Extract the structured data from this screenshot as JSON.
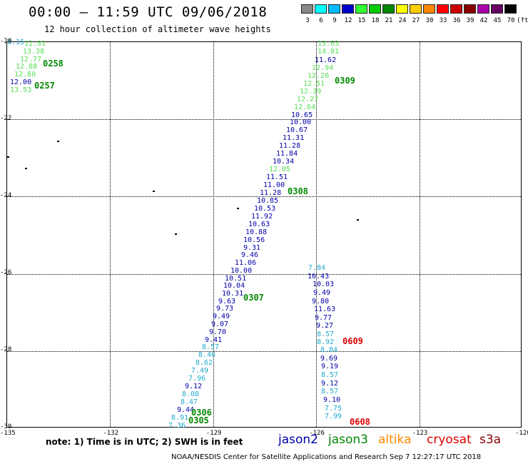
{
  "header": {
    "title": "00:00 – 11:59 UTC 09/06/2018",
    "subtitle": "12 hour collection of altimeter wave heights"
  },
  "colorbar": {
    "unit": "(ft)",
    "swatches": [
      {
        "label": "3",
        "color": "#888888"
      },
      {
        "label": "6",
        "color": "#00ffff"
      },
      {
        "label": "9",
        "color": "#00bbff"
      },
      {
        "label": "12",
        "color": "#0000cc"
      },
      {
        "label": "15",
        "color": "#33ff33"
      },
      {
        "label": "18",
        "color": "#00cc00"
      },
      {
        "label": "21",
        "color": "#008800"
      },
      {
        "label": "24",
        "color": "#ffff00"
      },
      {
        "label": "27",
        "color": "#ffcc00"
      },
      {
        "label": "30",
        "color": "#ff8800"
      },
      {
        "label": "33",
        "color": "#ff0000"
      },
      {
        "label": "36",
        "color": "#cc0000"
      },
      {
        "label": "39",
        "color": "#880000"
      },
      {
        "label": "42",
        "color": "#aa00aa"
      },
      {
        "label": "45",
        "color": "#660066"
      },
      {
        "label": "70",
        "color": "#000000"
      }
    ]
  },
  "map": {
    "lat_labels": [
      "-20",
      "-22",
      "-24",
      "-26",
      "-28",
      "-30"
    ],
    "lon_labels": [
      "-135",
      "-132",
      "-129",
      "-126",
      "-123",
      "-120"
    ],
    "colors": {
      "jason2": "#0000aa",
      "jason3": "#008800",
      "altika": "#ff8800",
      "cryosat": "#dd0000",
      "s3a": "#880000",
      "light_green": "#55dd55",
      "cyan": "#22aacc"
    },
    "observations": [
      {
        "v": "12.81",
        "c": "light_green"
      },
      {
        "v": "13.38",
        "c": "light_green"
      },
      {
        "v": "12.77",
        "c": "light_green"
      },
      {
        "v": "12.88",
        "c": "light_green"
      },
      {
        "v": "12.80",
        "c": "light_green"
      },
      {
        "v": "12.00",
        "c": "jason2"
      },
      {
        "v": "13.53",
        "c": "light_green"
      },
      {
        "v": "13.63",
        "c": "light_green"
      },
      {
        "v": "14.01",
        "c": "light_green"
      },
      {
        "v": "11.62",
        "c": "jason2"
      },
      {
        "v": "12.94",
        "c": "light_green"
      },
      {
        "v": "12.26",
        "c": "light_green"
      },
      {
        "v": "12.51",
        "c": "light_green"
      },
      {
        "v": "12.39",
        "c": "light_green"
      },
      {
        "v": "12.27",
        "c": "light_green"
      },
      {
        "v": "12.64",
        "c": "light_green"
      },
      {
        "v": "10.65",
        "c": "jason2"
      },
      {
        "v": "10.00",
        "c": "jason2"
      },
      {
        "v": "10.67",
        "c": "jason2"
      },
      {
        "v": "11.31",
        "c": "jason2"
      },
      {
        "v": "11.28",
        "c": "jason2"
      },
      {
        "v": "11.84",
        "c": "jason2"
      },
      {
        "v": "10.34",
        "c": "jason2"
      },
      {
        "v": "12.05",
        "c": "light_green"
      },
      {
        "v": "11.51",
        "c": "jason2"
      },
      {
        "v": "11.00",
        "c": "jason2"
      },
      {
        "v": "11.28",
        "c": "jason2"
      },
      {
        "v": "10.85",
        "c": "jason2"
      },
      {
        "v": "10.53",
        "c": "jason2"
      },
      {
        "v": "11.92",
        "c": "jason2"
      },
      {
        "v": "10.63",
        "c": "jason2"
      },
      {
        "v": "10.88",
        "c": "jason2"
      },
      {
        "v": "10.56",
        "c": "jason2"
      },
      {
        "v": "9.31",
        "c": "jason2"
      },
      {
        "v": "9.46",
        "c": "jason2"
      },
      {
        "v": "11.06",
        "c": "jason2"
      },
      {
        "v": "10.00",
        "c": "jason2"
      },
      {
        "v": "10.51",
        "c": "jason2"
      },
      {
        "v": "10.04",
        "c": "jason2"
      },
      {
        "v": "10.31",
        "c": "jason2"
      },
      {
        "v": "9.63",
        "c": "jason2"
      },
      {
        "v": "9.73",
        "c": "jason2"
      },
      {
        "v": "9.49",
        "c": "jason2"
      },
      {
        "v": "9.07",
        "c": "jason2"
      },
      {
        "v": "9.70",
        "c": "jason2"
      },
      {
        "v": "9.41",
        "c": "jason2"
      },
      {
        "v": "8.57",
        "c": "cyan"
      },
      {
        "v": "8.46",
        "c": "cyan"
      },
      {
        "v": "8.62",
        "c": "cyan"
      },
      {
        "v": "7.49",
        "c": "cyan"
      },
      {
        "v": "7.96",
        "c": "cyan"
      },
      {
        "v": "9.12",
        "c": "jason2"
      },
      {
        "v": "8.08",
        "c": "cyan"
      },
      {
        "v": "8.47",
        "c": "cyan"
      },
      {
        "v": "9.44",
        "c": "jason2"
      },
      {
        "v": "8.91",
        "c": "cyan"
      },
      {
        "v": "7.36",
        "c": "cyan"
      },
      {
        "v": "7.84",
        "c": "cyan"
      },
      {
        "v": "10.43",
        "c": "jason2"
      },
      {
        "v": "10.03",
        "c": "jason2"
      },
      {
        "v": "9.49",
        "c": "jason2"
      },
      {
        "v": "9.80",
        "c": "jason2"
      },
      {
        "v": "11.63",
        "c": "jason2"
      },
      {
        "v": "9.77",
        "c": "jason2"
      },
      {
        "v": "9.27",
        "c": "jason2"
      },
      {
        "v": "8.57",
        "c": "cyan"
      },
      {
        "v": "8.92",
        "c": "cyan"
      },
      {
        "v": "8.84",
        "c": "cyan"
      },
      {
        "v": "9.69",
        "c": "jason2"
      },
      {
        "v": "9.19",
        "c": "jason2"
      },
      {
        "v": "8.57",
        "c": "cyan"
      },
      {
        "v": "9.12",
        "c": "jason2"
      },
      {
        "v": "8.57",
        "c": "cyan"
      },
      {
        "v": "9.10",
        "c": "jason2"
      },
      {
        "v": "7.75",
        "c": "cyan"
      },
      {
        "v": "7.99",
        "c": "cyan"
      },
      {
        "v": "8.15",
        "c": "cyan"
      }
    ],
    "time_labels": [
      {
        "t": "0258",
        "c": "jason3"
      },
      {
        "t": "0257",
        "c": "jason3"
      },
      {
        "t": "0309",
        "c": "jason3"
      },
      {
        "t": "0308",
        "c": "jason3"
      },
      {
        "t": "0307",
        "c": "jason3"
      },
      {
        "t": "0306",
        "c": "jason3"
      },
      {
        "t": "0305",
        "c": "jason3"
      },
      {
        "t": "0609",
        "c": "cryosat"
      },
      {
        "t": "0608",
        "c": "cryosat"
      }
    ]
  },
  "legend": {
    "note": "note: 1) Time is in UTC; 2) SWH is in feet",
    "satellites": [
      {
        "name": "jason2",
        "color": "#0000aa"
      },
      {
        "name": "jason3",
        "color": "#008800"
      },
      {
        "name": "altika",
        "color": "#ff8800"
      },
      {
        "name": "cryosat",
        "color": "#dd0000"
      },
      {
        "name": "s3a",
        "color": "#880000"
      }
    ]
  },
  "footer": "NOAA/NESDIS Center for Satellite Applications and Research    Sep  7 12:27:17 UTC 2018"
}
